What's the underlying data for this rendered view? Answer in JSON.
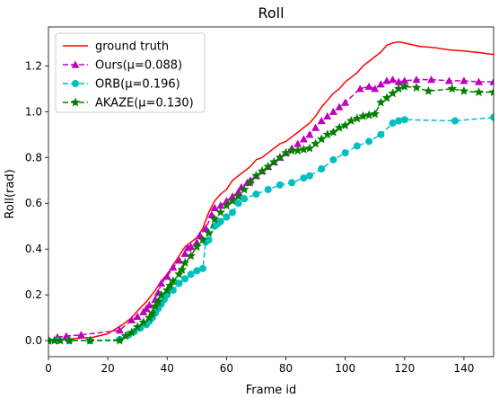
{
  "chart_data": {
    "type": "line",
    "title": "Roll",
    "xlabel": "Frame id",
    "ylabel": "Roll(rad)",
    "xlim": [
      0,
      150
    ],
    "ylim": [
      -0.07,
      1.37
    ],
    "xticks": [
      0,
      20,
      40,
      60,
      80,
      100,
      120,
      140
    ],
    "yticks": [
      0.0,
      0.2,
      0.4,
      0.6,
      0.8,
      1.0,
      1.2
    ],
    "ytick_labels": [
      "0.0",
      "0.2",
      "0.4",
      "0.6",
      "0.8",
      "1.0",
      "1.2"
    ],
    "legend_position": "top-left",
    "series": [
      {
        "name": "ground truth",
        "color": "#ff0000",
        "line_style": "solid",
        "marker": "none",
        "x": [
          0,
          5,
          10,
          15,
          20,
          25,
          28,
          30,
          33,
          36,
          38,
          40,
          42,
          44,
          46,
          48,
          50,
          52,
          54,
          56,
          58,
          60,
          62,
          64,
          66,
          68,
          70,
          72,
          74,
          76,
          78,
          80,
          82,
          84,
          86,
          88,
          90,
          92,
          94,
          96,
          98,
          100,
          102,
          104,
          106,
          108,
          110,
          112,
          114,
          116,
          118,
          120,
          125,
          130,
          135,
          140,
          145,
          150
        ],
        "y": [
          0.0,
          0.005,
          0.01,
          0.015,
          0.03,
          0.07,
          0.1,
          0.13,
          0.17,
          0.22,
          0.26,
          0.29,
          0.33,
          0.37,
          0.41,
          0.43,
          0.45,
          0.49,
          0.56,
          0.61,
          0.64,
          0.66,
          0.7,
          0.72,
          0.74,
          0.76,
          0.79,
          0.8,
          0.82,
          0.84,
          0.86,
          0.87,
          0.89,
          0.91,
          0.93,
          0.95,
          0.98,
          1.02,
          1.05,
          1.08,
          1.1,
          1.13,
          1.15,
          1.17,
          1.2,
          1.22,
          1.24,
          1.26,
          1.29,
          1.3,
          1.305,
          1.3,
          1.285,
          1.28,
          1.27,
          1.265,
          1.258,
          1.25
        ]
      },
      {
        "name": "Ours(μ=0.088)",
        "color": "#bf00bf",
        "line_style": "dashed",
        "marker": "triangle",
        "x": [
          3,
          6,
          11,
          24,
          28,
          30,
          32,
          33,
          34,
          36,
          37,
          38,
          40,
          42,
          44,
          46,
          47,
          48,
          50,
          51,
          53,
          55,
          56,
          58,
          60,
          62,
          64,
          65,
          67,
          68,
          70,
          72,
          74,
          76,
          78,
          80,
          82,
          84,
          86,
          88,
          90,
          92,
          94,
          96,
          98,
          100,
          105,
          108,
          110,
          112,
          114,
          116,
          118,
          120,
          124,
          129,
          135,
          140,
          145,
          150
        ],
        "y": [
          0.015,
          0.02,
          0.025,
          0.045,
          0.09,
          0.105,
          0.125,
          0.14,
          0.155,
          0.18,
          0.21,
          0.25,
          0.28,
          0.32,
          0.35,
          0.38,
          0.405,
          0.41,
          0.43,
          0.46,
          0.49,
          0.55,
          0.58,
          0.59,
          0.61,
          0.63,
          0.65,
          0.67,
          0.69,
          0.7,
          0.72,
          0.74,
          0.76,
          0.78,
          0.8,
          0.82,
          0.84,
          0.86,
          0.88,
          0.9,
          0.93,
          0.96,
          0.98,
          1.0,
          1.02,
          1.04,
          1.1,
          1.11,
          1.1,
          1.12,
          1.135,
          1.14,
          1.13,
          1.135,
          1.14,
          1.14,
          1.135,
          1.135,
          1.13,
          1.13
        ]
      },
      {
        "name": "ORB(μ=0.196)",
        "color": "#00bfbf",
        "line_style": "dashed",
        "marker": "circle",
        "x": [
          0,
          3,
          7,
          14,
          24,
          27,
          29,
          31,
          33,
          34,
          35,
          36,
          37,
          38,
          39,
          40,
          42,
          44,
          46,
          48,
          50,
          52,
          53,
          54,
          56,
          57,
          58,
          60,
          62,
          64,
          66,
          70,
          74,
          78,
          82,
          86,
          88,
          92,
          96,
          100,
          104,
          108,
          112,
          116,
          118,
          120,
          137,
          150
        ],
        "y": [
          0.0,
          0.0,
          0.0,
          0.0,
          0.005,
          0.025,
          0.04,
          0.055,
          0.07,
          0.085,
          0.1,
          0.12,
          0.14,
          0.16,
          0.18,
          0.2,
          0.22,
          0.25,
          0.27,
          0.29,
          0.305,
          0.315,
          0.43,
          0.44,
          0.5,
          0.51,
          0.52,
          0.54,
          0.56,
          0.6,
          0.62,
          0.64,
          0.66,
          0.68,
          0.69,
          0.71,
          0.72,
          0.75,
          0.79,
          0.82,
          0.85,
          0.87,
          0.9,
          0.95,
          0.96,
          0.965,
          0.96,
          0.975
        ]
      },
      {
        "name": "AKAZE(μ=0.130)",
        "color": "#007f00",
        "line_style": "dashed",
        "marker": "star",
        "x": [
          0,
          2,
          4,
          7,
          14,
          24,
          26,
          28,
          30,
          32,
          34,
          35,
          36,
          37,
          38,
          40,
          41,
          42,
          44,
          45,
          46,
          48,
          50,
          52,
          54,
          56,
          58,
          60,
          62,
          64,
          66,
          68,
          70,
          72,
          74,
          76,
          78,
          80,
          82,
          84,
          86,
          88,
          90,
          92,
          94,
          96,
          98,
          100,
          102,
          104,
          106,
          108,
          110,
          112,
          114,
          116,
          118,
          120,
          124,
          128,
          136,
          140,
          145,
          150
        ],
        "y": [
          0.0,
          0.0,
          0.0,
          0.0,
          0.0,
          0.0,
          0.02,
          0.035,
          0.06,
          0.08,
          0.1,
          0.12,
          0.15,
          0.17,
          0.2,
          0.22,
          0.24,
          0.26,
          0.29,
          0.31,
          0.34,
          0.37,
          0.41,
          0.44,
          0.47,
          0.53,
          0.56,
          0.59,
          0.61,
          0.63,
          0.66,
          0.69,
          0.72,
          0.74,
          0.76,
          0.78,
          0.8,
          0.82,
          0.83,
          0.83,
          0.835,
          0.84,
          0.86,
          0.88,
          0.9,
          0.91,
          0.93,
          0.94,
          0.96,
          0.97,
          0.98,
          0.985,
          0.99,
          1.04,
          1.06,
          1.08,
          1.1,
          1.11,
          1.105,
          1.09,
          1.1,
          1.09,
          1.085,
          1.085
        ]
      }
    ]
  }
}
